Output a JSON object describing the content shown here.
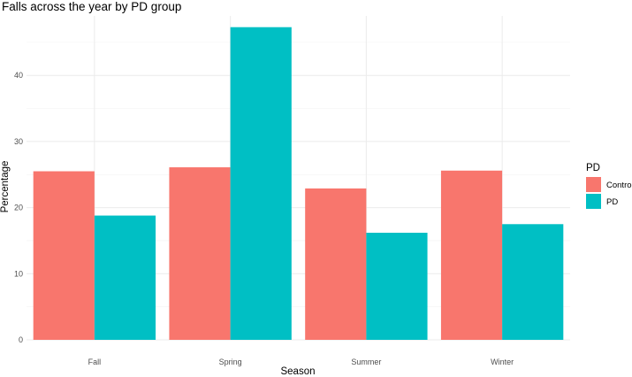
{
  "chart_data": {
    "type": "bar",
    "title": "Falls across the year by PD group",
    "xlabel": "Season",
    "ylabel": "Percentage",
    "categories": [
      "Fall",
      "Spring",
      "Summer",
      "Winter"
    ],
    "series": [
      {
        "name": "Control",
        "values": [
          25.5,
          26.1,
          22.9,
          25.6
        ],
        "color": "#F8766D"
      },
      {
        "name": "PD",
        "values": [
          18.8,
          47.3,
          16.2,
          17.5
        ],
        "color": "#00BFC4"
      }
    ],
    "ylim": [
      0,
      49
    ],
    "yticks": [
      0,
      10,
      20,
      30,
      40
    ],
    "grid": true,
    "legend": {
      "title": "PD",
      "placement": "right"
    }
  }
}
